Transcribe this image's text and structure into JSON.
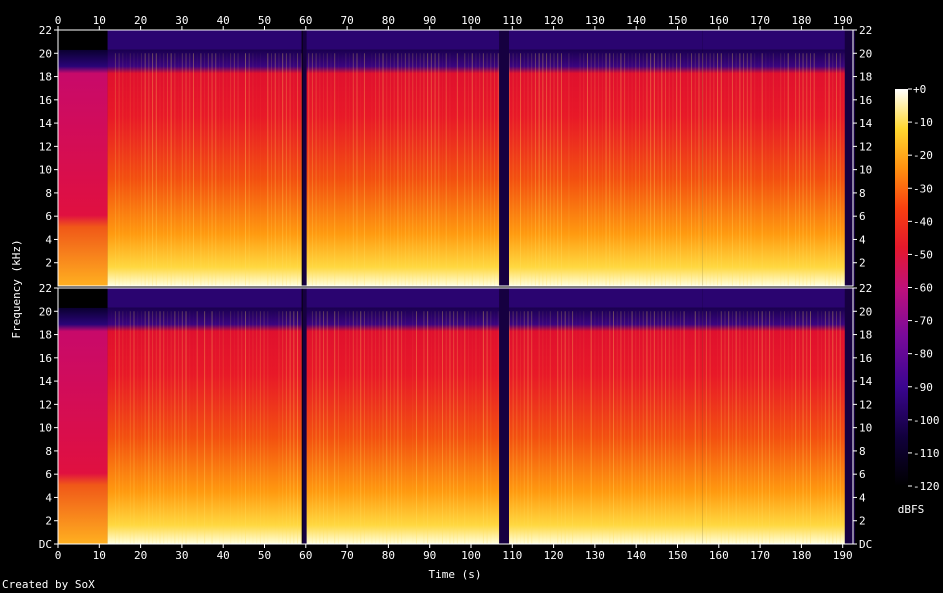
{
  "chart_data": {
    "type": "heatmap",
    "title": "",
    "xlabel": "Time (s)",
    "ylabel": "Frequency (kHz)",
    "xlim": [
      0,
      193
    ],
    "ylim_khz": [
      0,
      22
    ],
    "x_ticks": [
      "0",
      "10",
      "20",
      "30",
      "40",
      "50",
      "60",
      "70",
      "80",
      "90",
      "100",
      "110",
      "120",
      "130",
      "140",
      "150",
      "160",
      "170",
      "180",
      "190"
    ],
    "y_ticks_upper": [
      "2",
      "4",
      "6",
      "8",
      "10",
      "12",
      "14",
      "16",
      "18",
      "20",
      "22"
    ],
    "y_ticks_lower": [
      "DC",
      "2",
      "4",
      "6",
      "8",
      "10",
      "12",
      "14",
      "16",
      "18",
      "20",
      "22"
    ],
    "colorbar": {
      "label": "dBFS",
      "ticks": [
        "+0",
        "-10",
        "-20",
        "-30",
        "-40",
        "-50",
        "-60",
        "-70",
        "-80",
        "-90",
        "-100",
        "-110",
        "-120"
      ],
      "range_db": [
        -120,
        0
      ]
    },
    "channels": 2,
    "segments_s": [
      [
        0,
        12,
        "intro"
      ],
      [
        12,
        59,
        "music"
      ],
      [
        60,
        107,
        "music"
      ],
      [
        107,
        109,
        "gap"
      ],
      [
        109,
        156,
        "music"
      ],
      [
        156,
        191,
        "music"
      ]
    ]
  },
  "footer": {
    "credit": "Created by SoX"
  }
}
